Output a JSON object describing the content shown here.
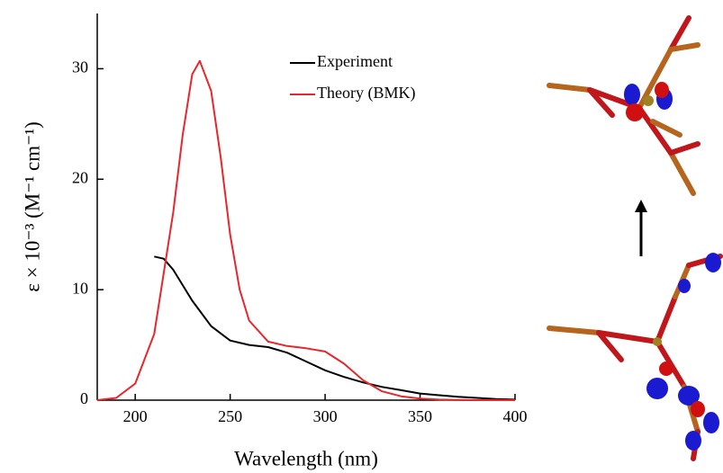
{
  "chart_data": {
    "type": "line",
    "xlabel": "Wavelength (nm)",
    "ylabel": "ε × 10⁻³ (M⁻¹ cm⁻¹)",
    "xlim": [
      180,
      400
    ],
    "ylim": [
      0,
      35
    ],
    "xticks": [
      200,
      250,
      300,
      350,
      400
    ],
    "yticks": [
      0,
      10,
      20,
      30
    ],
    "legend": "upper right",
    "series": [
      {
        "name": "Experiment",
        "color": "#000000",
        "x": [
          210,
          215,
          220,
          230,
          240,
          250,
          260,
          270,
          280,
          290,
          300,
          310,
          320,
          330,
          340,
          350,
          360,
          370,
          380,
          390,
          400
        ],
        "values": [
          13.0,
          12.8,
          11.8,
          9.0,
          6.7,
          5.4,
          5.0,
          4.8,
          4.3,
          3.5,
          2.7,
          2.1,
          1.6,
          1.2,
          0.9,
          0.6,
          0.45,
          0.3,
          0.2,
          0.1,
          0.05
        ]
      },
      {
        "name": "Theory (BMK)",
        "color": "#e8262b",
        "x": [
          180,
          190,
          200,
          210,
          220,
          225,
          230,
          234,
          240,
          245,
          250,
          255,
          260,
          270,
          280,
          290,
          300,
          310,
          320,
          330,
          340,
          350,
          360,
          370,
          380,
          400
        ],
        "values": [
          0,
          0.2,
          1.5,
          6,
          17,
          24,
          29.5,
          30.7,
          28,
          22,
          15,
          10,
          7.2,
          5.3,
          4.9,
          4.7,
          4.4,
          3.3,
          1.8,
          0.8,
          0.35,
          0.15,
          0.05,
          0.02,
          0,
          0
        ]
      }
    ]
  }
}
